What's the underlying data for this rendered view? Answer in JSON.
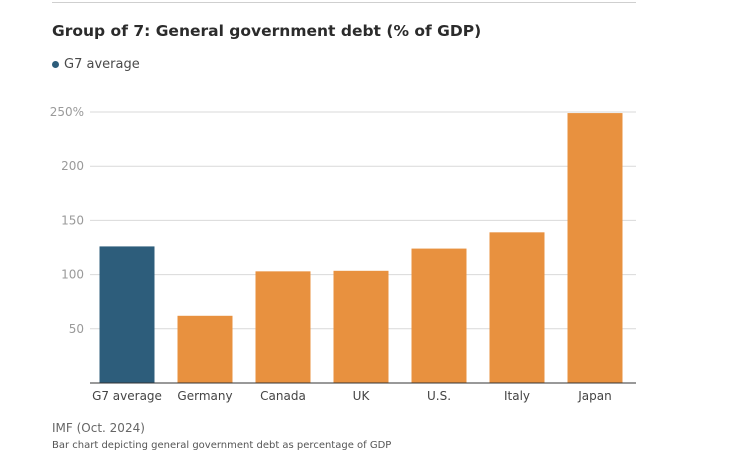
{
  "chart_data": {
    "type": "bar",
    "title": "Group of 7: General government debt (% of GDP)",
    "categories": [
      "G7 average",
      "Germany",
      "Canada",
      "UK",
      "U.S.",
      "Italy",
      "Japan"
    ],
    "values": [
      126,
      62,
      103,
      103.5,
      124,
      139,
      249
    ],
    "highlight_category": "G7 average",
    "legend": [
      {
        "label": "G7 average",
        "color": "#2d5d7b"
      }
    ],
    "y_ticks": [
      50,
      100,
      150,
      200,
      250
    ],
    "y_tick_labels": [
      "50",
      "100",
      "150",
      "200",
      "250%"
    ],
    "ylim": [
      0,
      250
    ],
    "grid": true,
    "xlabel": "",
    "ylabel": ""
  },
  "colors": {
    "bar_default": "#e8913f",
    "bar_highlight": "#2d5d7b",
    "grid": "#d9d9d9",
    "axis": "#333333",
    "tick_label": "#9a9a9a",
    "category_label": "#444444"
  },
  "footer": {
    "source": "IMF (Oct. 2024)",
    "caption": "Bar chart depicting general government debt as percentage of GDP"
  }
}
